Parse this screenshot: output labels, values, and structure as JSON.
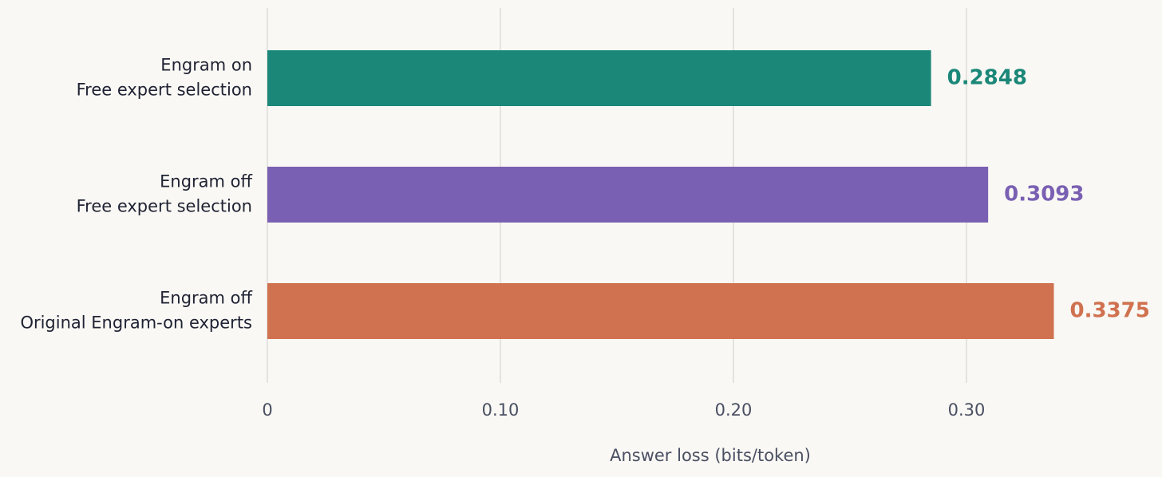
{
  "chart_data": {
    "type": "hbar",
    "categories": [
      [
        "Engram on",
        "Free expert selection"
      ],
      [
        "Engram off",
        "Free expert selection"
      ],
      [
        "Engram off",
        "Original Engram-on experts"
      ]
    ],
    "values": [
      0.2848,
      0.3093,
      0.3375
    ],
    "colors": [
      "#1b8778",
      "#7a60b3",
      "#d0714f"
    ],
    "xlim": [
      0,
      0.38
    ],
    "xticks": [
      0,
      {
        "value": 0.1,
        "label": "0.10"
      },
      {
        "value": 0.2,
        "label": "0.20"
      },
      {
        "value": 0.3,
        "label": "0.30"
      }
    ],
    "xlabel": "Answer loss (bits/token)",
    "grid": true
  }
}
